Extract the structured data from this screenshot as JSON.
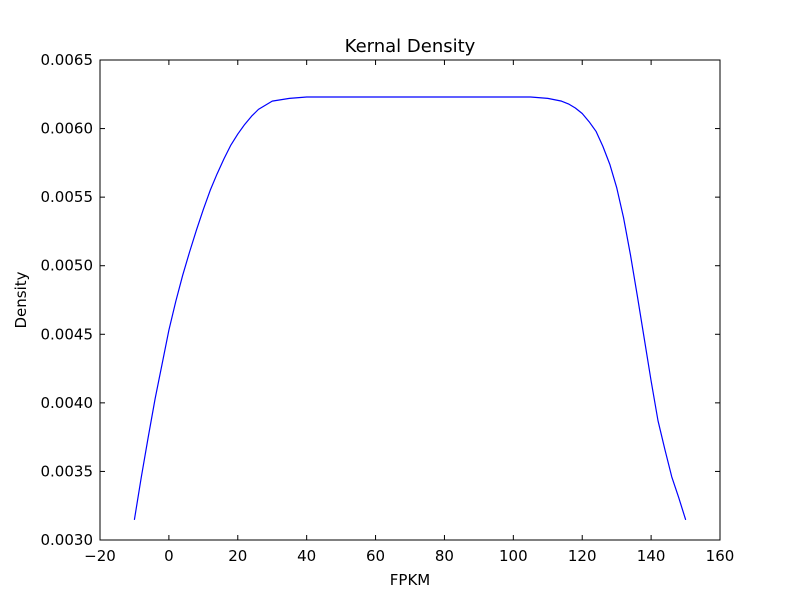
{
  "chart_data": {
    "type": "line",
    "title": "Kernal Density",
    "xlabel": "FPKM",
    "ylabel": "Density",
    "xlim": [
      -20,
      160
    ],
    "ylim": [
      0.003,
      0.0065
    ],
    "x_ticks": [
      -20,
      0,
      20,
      40,
      60,
      80,
      100,
      120,
      140,
      160
    ],
    "x_tick_labels": [
      "−20",
      "0",
      "20",
      "40",
      "60",
      "80",
      "100",
      "120",
      "140",
      "160"
    ],
    "y_ticks": [
      0.003,
      0.0035,
      0.004,
      0.0045,
      0.005,
      0.0055,
      0.006,
      0.0065
    ],
    "y_tick_labels": [
      "0.0030",
      "0.0035",
      "0.0040",
      "0.0045",
      "0.0050",
      "0.0055",
      "0.0060",
      "0.0065"
    ],
    "grid": false,
    "legend": "none",
    "series": [
      {
        "color": "#0000ff",
        "x": [
          -10,
          -8,
          -6,
          -4,
          -2,
          0,
          2,
          4,
          6,
          8,
          10,
          12,
          14,
          16,
          18,
          20,
          22,
          24,
          26,
          28,
          30,
          35,
          40,
          50,
          60,
          70,
          80,
          90,
          100,
          105,
          110,
          112,
          114,
          116,
          118,
          120,
          122,
          124,
          126,
          128,
          130,
          132,
          134,
          136,
          138,
          140,
          142,
          144,
          146,
          148,
          150
        ],
        "y": [
          0.00315,
          0.00346,
          0.00375,
          0.00403,
          0.00428,
          0.00453,
          0.00474,
          0.00493,
          0.0051,
          0.00526,
          0.00541,
          0.00555,
          0.00567,
          0.00578,
          0.00588,
          0.00596,
          0.00603,
          0.00609,
          0.00614,
          0.00617,
          0.0062,
          0.00622,
          0.00623,
          0.00623,
          0.00623,
          0.00623,
          0.00623,
          0.00623,
          0.00623,
          0.00623,
          0.00622,
          0.00621,
          0.0062,
          0.00618,
          0.00615,
          0.00611,
          0.00605,
          0.00598,
          0.00587,
          0.00574,
          0.00557,
          0.00535,
          0.00508,
          0.00478,
          0.00447,
          0.00416,
          0.00387,
          0.00366,
          0.00346,
          0.00331,
          0.00315
        ]
      }
    ]
  }
}
